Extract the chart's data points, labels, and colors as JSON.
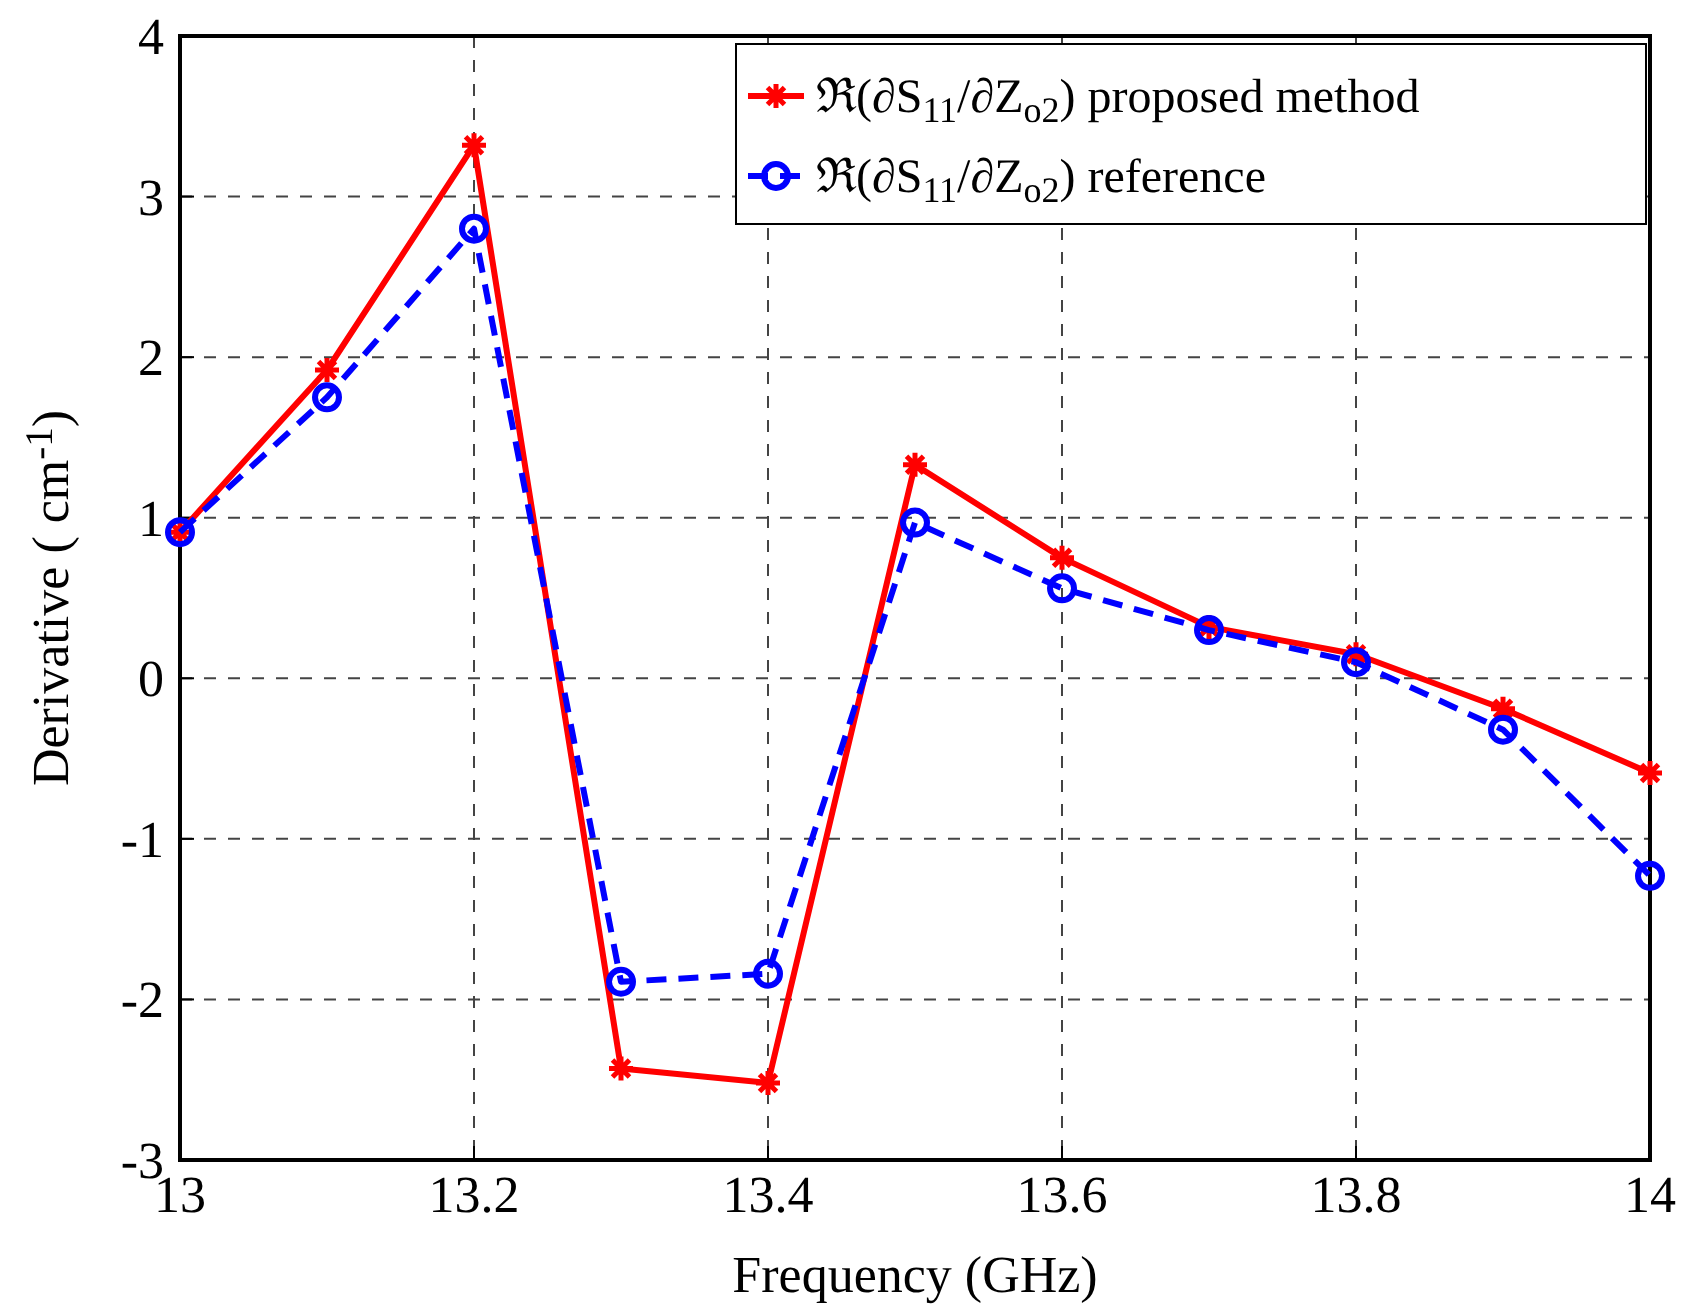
{
  "chart_data": {
    "type": "line",
    "xlabel": "Frequency (GHz)",
    "ylabel": "Derivative ( cm$^{-1}$)",
    "x": [
      13,
      13.1,
      13.2,
      13.3,
      13.4,
      13.5,
      13.6,
      13.7,
      13.8,
      13.9,
      14
    ],
    "series": [
      {
        "name": "ℜ(∂S$_{11}$/∂Z$_{o2}$) proposed method",
        "color": "#ff0000",
        "marker": "cross",
        "line_style": "solid",
        "values": [
          0.91,
          1.92,
          3.32,
          -2.43,
          -2.52,
          1.33,
          0.75,
          0.32,
          0.15,
          -0.19,
          -0.59
        ]
      },
      {
        "name": "ℜ(∂S$_{11}$/∂Z$_{o2}$) reference",
        "color": "#0000ff",
        "marker": "circle",
        "line_style": "dashed",
        "values": [
          0.91,
          1.75,
          2.8,
          -1.89,
          -1.84,
          0.97,
          0.56,
          0.3,
          0.1,
          -0.32,
          -1.23
        ]
      }
    ],
    "xlim": [
      13,
      14
    ],
    "xticks": [
      13,
      13.2,
      13.4,
      13.6,
      13.8,
      14
    ],
    "ylim": [
      -3,
      4
    ],
    "yticks": [
      -3,
      -2,
      -1,
      0,
      1,
      2,
      3,
      4
    ],
    "grid": true,
    "legend": "top right"
  }
}
